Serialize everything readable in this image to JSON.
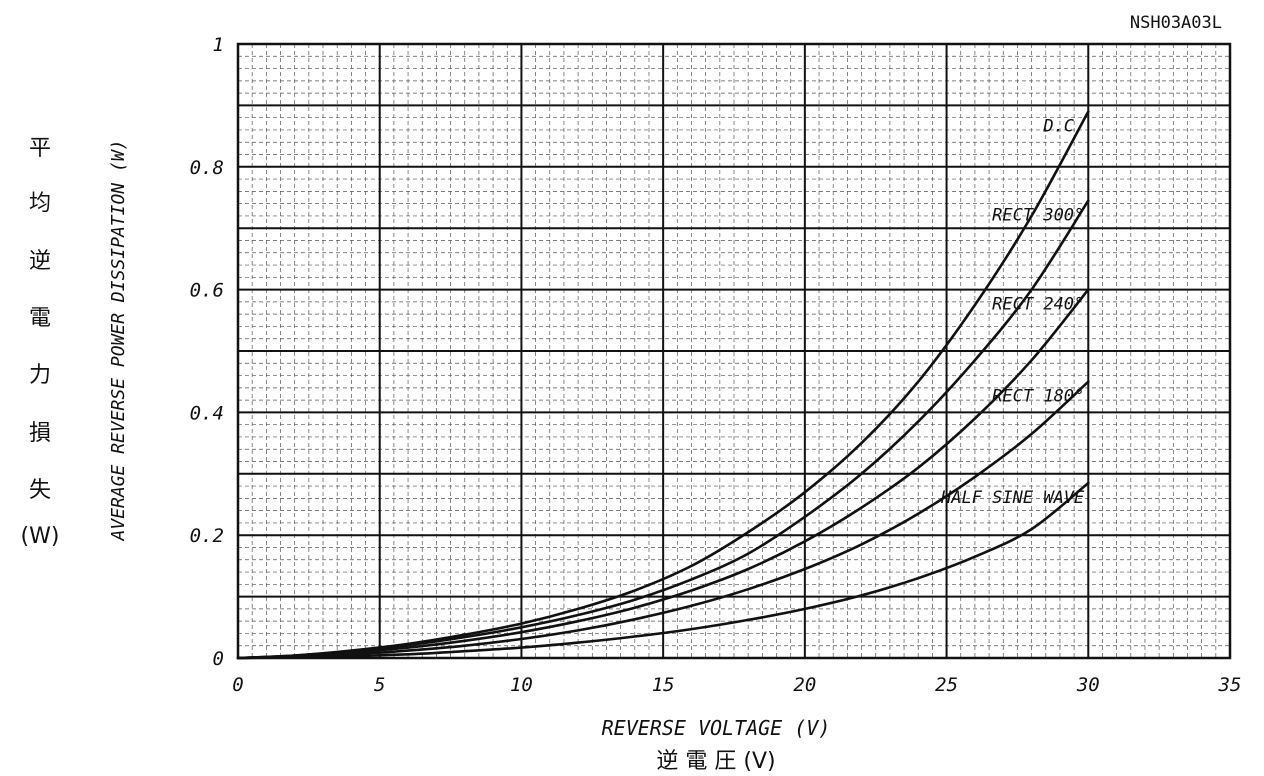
{
  "part_number": "NSH03A03L",
  "chart_data": {
    "type": "line",
    "x_axis": {
      "label_en": "REVERSE VOLTAGE (V)",
      "label_jp": "逆 電 圧 (V)",
      "range": [
        0,
        35
      ],
      "ticks": [
        0,
        5,
        10,
        15,
        20,
        25,
        30,
        35
      ],
      "tick_labels": [
        "0",
        "5",
        "10",
        "15",
        "20",
        "25",
        "30",
        "35"
      ]
    },
    "y_axis": {
      "label_en": "AVERAGE REVERSE POWER DISSIPATION (W)",
      "label_jp_chars": [
        "平",
        "均",
        "逆",
        "電",
        "力",
        "損",
        "失",
        "(W)"
      ],
      "range": [
        0,
        1
      ],
      "ticks": [
        0,
        0.2,
        0.4,
        0.6,
        0.8,
        1
      ],
      "tick_labels": [
        "0",
        "0.2",
        "0.4",
        "0.6",
        "0.8",
        "1"
      ]
    },
    "grid": true,
    "series": [
      {
        "name": "D.C.",
        "x": [
          0,
          2,
          4,
          6,
          8,
          10,
          12,
          14,
          16,
          18,
          20,
          22,
          24,
          26,
          28,
          30
        ],
        "y": [
          0,
          0.004,
          0.012,
          0.023,
          0.038,
          0.056,
          0.08,
          0.11,
          0.15,
          0.205,
          0.27,
          0.35,
          0.45,
          0.575,
          0.72,
          0.89
        ]
      },
      {
        "name": "RECT 300°",
        "x": [
          0,
          2,
          4,
          6,
          8,
          10,
          12,
          14,
          16,
          18,
          20,
          22,
          24,
          26,
          28,
          30
        ],
        "y": [
          0,
          0.004,
          0.011,
          0.021,
          0.034,
          0.05,
          0.07,
          0.095,
          0.128,
          0.17,
          0.23,
          0.3,
          0.385,
          0.485,
          0.6,
          0.745
        ]
      },
      {
        "name": "RECT 240°",
        "x": [
          0,
          2,
          4,
          6,
          8,
          10,
          12,
          14,
          16,
          18,
          20,
          22,
          24,
          26,
          28,
          30
        ],
        "y": [
          0,
          0.003,
          0.009,
          0.017,
          0.028,
          0.042,
          0.06,
          0.082,
          0.11,
          0.145,
          0.19,
          0.245,
          0.31,
          0.39,
          0.485,
          0.6
        ]
      },
      {
        "name": "RECT 180°",
        "x": [
          0,
          2,
          4,
          6,
          8,
          10,
          12,
          14,
          16,
          18,
          20,
          22,
          24,
          26,
          28,
          30
        ],
        "y": [
          0,
          0.002,
          0.006,
          0.012,
          0.02,
          0.031,
          0.045,
          0.063,
          0.085,
          0.112,
          0.145,
          0.185,
          0.235,
          0.295,
          0.365,
          0.45
        ]
      },
      {
        "name": "HALF SINE WAVE",
        "x": [
          0,
          2,
          4,
          6,
          8,
          10,
          12,
          14,
          16,
          18,
          20,
          22,
          24,
          26,
          28,
          30
        ],
        "y": [
          0,
          0.001,
          0.003,
          0.006,
          0.011,
          0.017,
          0.025,
          0.035,
          0.047,
          0.062,
          0.08,
          0.102,
          0.13,
          0.165,
          0.21,
          0.285
        ]
      }
    ]
  }
}
